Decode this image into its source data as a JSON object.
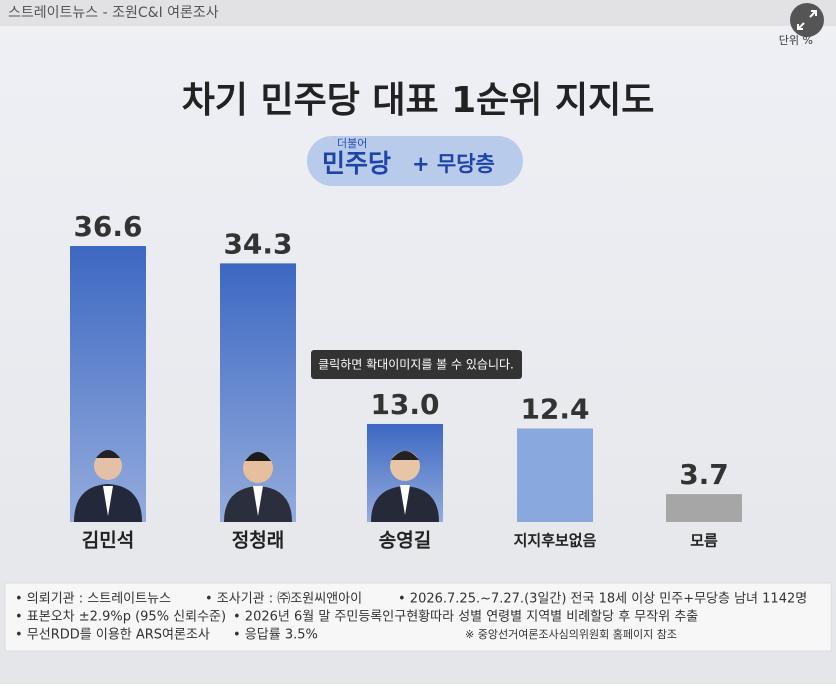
{
  "source": "스트레이트뉴스 - 조원C&I 여론조사",
  "unit": "단위 %",
  "badge": {
    "small": "더불어",
    "party": "민주당",
    "rest": "+ 무당층"
  },
  "tooltip": "클릭하면 확대이미지를 볼 수 있습니다.",
  "chart_data": {
    "type": "bar",
    "title": "차기 민주당 대표 1순위 지지도",
    "categories": [
      "김민석",
      "정청래",
      "송영길",
      "지지후보없음",
      "모름"
    ],
    "values": [
      36.6,
      34.3,
      13.0,
      12.4,
      3.7
    ],
    "value_labels": [
      "36.6",
      "34.3",
      "13.0",
      "12.4",
      "3.7"
    ],
    "colors": [
      "#3d68c2",
      "#3d68c2",
      "#3d68c2",
      "#89a8de",
      "#a6a6a6"
    ]
  },
  "footer_notes": [
    [
      "• 의뢰기관 : 스트레이트뉴스",
      "• 조사기관 : ㈜조원씨앤아이",
      "• 2026.7.25.~7.27.(3일간) 전국 18세 이상 민주+무당층 남녀 1142명"
    ],
    [
      "• 표본오차 ±2.9%p (95% 신뢰수준)",
      "• 2026년 6월 말 주민등록인구현황따라 성별 연령별 지역별 비례할당 후 무작위 추출"
    ],
    [
      "• 무선RDD를 이용한 ARS여론조사",
      "• 응답률 3.5%",
      "※ 중앙선거여론조사심의위원회 홈페이지 참조"
    ]
  ]
}
